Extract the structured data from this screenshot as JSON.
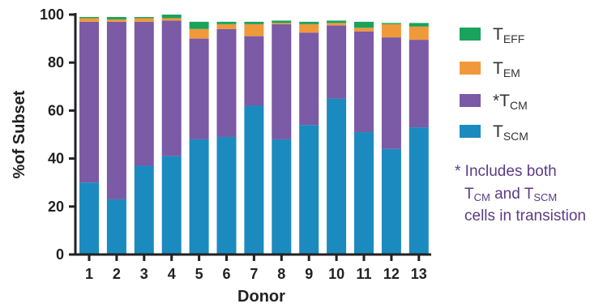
{
  "chart_data": {
    "type": "bar",
    "stacked": true,
    "xlabel": "Donor",
    "ylabel": "%of Subset",
    "ylim": [
      0,
      100
    ],
    "yticks": [
      0,
      20,
      40,
      60,
      80,
      100
    ],
    "categories": [
      "1",
      "2",
      "3",
      "4",
      "5",
      "6",
      "7",
      "8",
      "9",
      "10",
      "11",
      "12",
      "13"
    ],
    "series": [
      {
        "name": "T_SCM",
        "label_main": "T",
        "label_sub": "SCM",
        "color": "#1b8bbf",
        "values": [
          30,
          23,
          37,
          41,
          48,
          49,
          62,
          48,
          54,
          65,
          51,
          44,
          53
        ]
      },
      {
        "name": "*T_CM",
        "label_main": "*T",
        "label_sub": "CM",
        "color": "#7b5aa6",
        "values": [
          67,
          74,
          60,
          56.5,
          42,
          45,
          29,
          48,
          38.5,
          30.5,
          42,
          46.5,
          36.5
        ]
      },
      {
        "name": "T_EM",
        "label_main": "T",
        "label_sub": "EM",
        "color": "#f0993a",
        "values": [
          1.5,
          1,
          1.5,
          1,
          4,
          2,
          5,
          0.5,
          3.5,
          1,
          1.5,
          5.5,
          5.5
        ]
      },
      {
        "name": "T_EFF",
        "label_main": "T",
        "label_sub": "EFF",
        "color": "#1aa35c",
        "values": [
          0.5,
          1,
          0.5,
          1.5,
          3,
          1,
          1,
          1,
          1,
          1,
          2.5,
          0.5,
          1.5
        ]
      }
    ],
    "legend_order": [
      "T_EFF",
      "T_EM",
      "*T_CM",
      "T_SCM"
    ],
    "legend_position": "right",
    "note": {
      "line1": "* Includes both",
      "line2_a_main": "T",
      "line2_a_sub": "CM",
      "line2_b": " and T",
      "line2_b_sub": "SCM",
      "line3": "cells in transistion",
      "color": "#5b3b86"
    },
    "axis_color": "#222222"
  }
}
